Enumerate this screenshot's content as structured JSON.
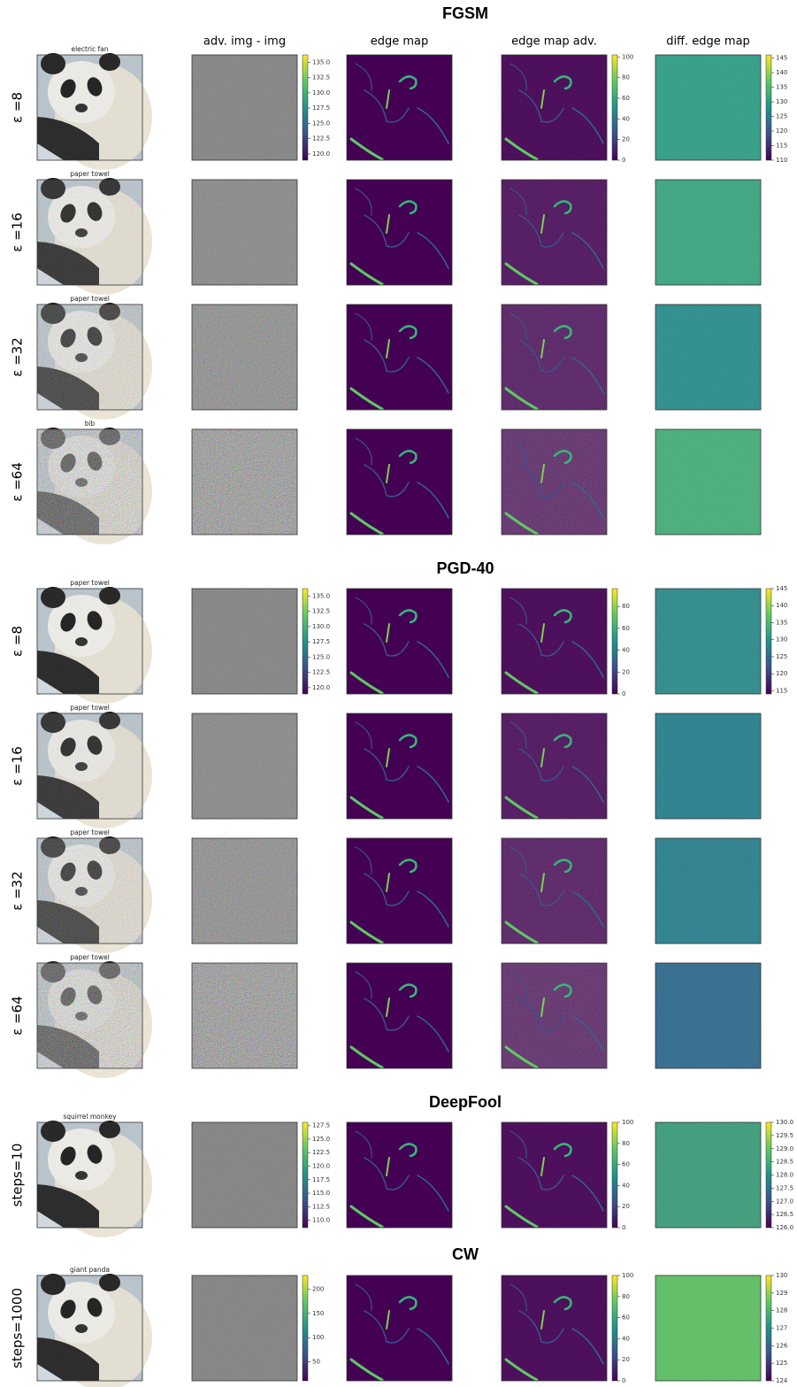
{
  "column_headers": [
    "adv. img - img",
    "edge map",
    "edge map adv.",
    "diff. edge map"
  ],
  "sections": [
    {
      "title": "FGSM",
      "rows": [
        {
          "label": "ε =8",
          "class": "electric fan"
        },
        {
          "label": "ε =16",
          "class": "paper towel"
        },
        {
          "label": "ε =32",
          "class": "paper towel"
        },
        {
          "label": "ε =64",
          "class": "bib"
        }
      ],
      "colorbars": [
        {
          "ticks": [
            "135.0",
            "132.5",
            "130.0",
            "127.5",
            "125.0",
            "122.5",
            "120.0"
          ]
        },
        {
          "ticks": [
            "100",
            "80",
            "60",
            "40",
            "20",
            "0"
          ]
        },
        {
          "ticks": [
            "145",
            "140",
            "135",
            "130",
            "125",
            "120",
            "115",
            "110"
          ]
        }
      ]
    },
    {
      "title": "PGD-40",
      "rows": [
        {
          "label": "ε =8",
          "class": "paper towel"
        },
        {
          "label": "ε =16",
          "class": "paper towel"
        },
        {
          "label": "ε =32",
          "class": "paper towel"
        },
        {
          "label": "ε =64",
          "class": "paper towel"
        }
      ],
      "colorbars": [
        {
          "ticks": [
            "135.0",
            "132.5",
            "130.0",
            "127.5",
            "125.0",
            "122.5",
            "120.0"
          ]
        },
        {
          "ticks": [
            "80",
            "60",
            "40",
            "20",
            "0"
          ]
        },
        {
          "ticks": [
            "145",
            "140",
            "135",
            "130",
            "125",
            "120",
            "115"
          ]
        }
      ]
    },
    {
      "title": "DeepFool",
      "rows": [
        {
          "label": "steps=10",
          "class": "squirrel monkey"
        }
      ],
      "colorbars": [
        {
          "ticks": [
            "127.5",
            "125.0",
            "122.5",
            "120.0",
            "117.5",
            "115.0",
            "112.5",
            "110.0"
          ]
        },
        {
          "ticks": [
            "100",
            "80",
            "60",
            "40",
            "20",
            "0"
          ]
        },
        {
          "ticks": [
            "130.0",
            "129.5",
            "129.0",
            "128.5",
            "128.0",
            "127.5",
            "127.0",
            "126.5",
            "126.0"
          ]
        }
      ]
    },
    {
      "title": "CW",
      "rows": [
        {
          "label": "steps=1000",
          "class": "giant panda"
        }
      ],
      "colorbars": [
        {
          "ticks": [
            "200",
            "150",
            "100",
            "50"
          ]
        },
        {
          "ticks": [
            "100",
            "80",
            "60",
            "40",
            "20",
            "0"
          ]
        },
        {
          "ticks": [
            "130",
            "129",
            "128",
            "127",
            "126",
            "125",
            "124"
          ]
        }
      ]
    }
  ]
}
